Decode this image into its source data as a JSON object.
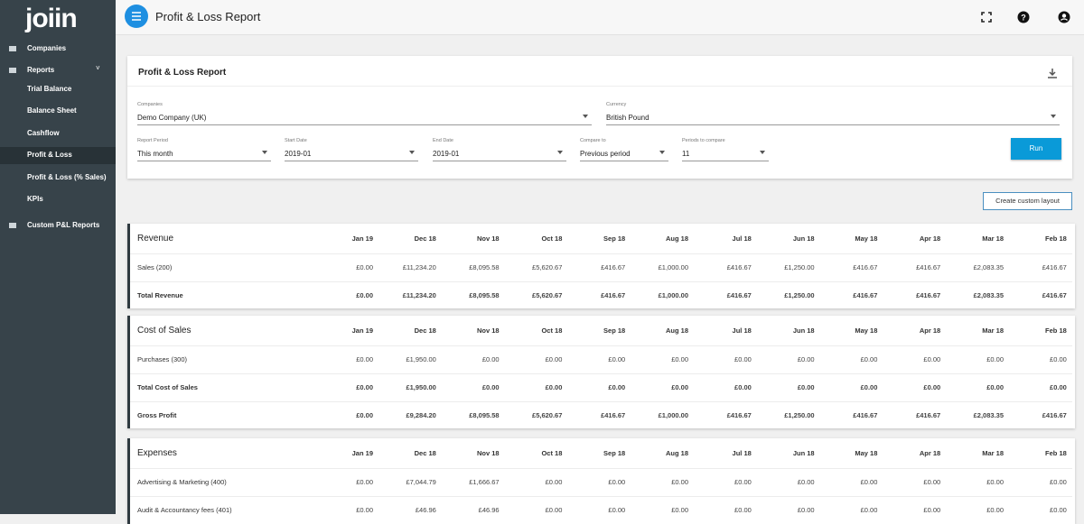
{
  "sidebar": {
    "logo": "joiin",
    "items": [
      "Companies",
      "Reports",
      "Trial Balance",
      "Balance Sheet",
      "Cashflow",
      "Profit & Loss",
      "Profit & Loss (% Sales)",
      "KPIs",
      "Custom P&L Reports"
    ]
  },
  "header": {
    "title": "Profit & Loss Report"
  },
  "filters_card": {
    "title": "Profit & Loss Report",
    "fields": [
      {
        "label": "Companies",
        "value": "Demo Company (UK)"
      },
      {
        "label": "Currency",
        "value": "British Pound"
      },
      {
        "label": "Report Period",
        "value": "This month"
      },
      {
        "label": "Start Date",
        "value": "2019-01"
      },
      {
        "label": "End Date",
        "value": "2019-01"
      },
      {
        "label": "Compare to",
        "value": "Previous period"
      },
      {
        "label": "Periods to compare",
        "value": "11"
      }
    ],
    "run": "Run"
  },
  "custom_layout": "Create custom layout",
  "periods": [
    "Jan 19",
    "Dec 18",
    "Nov 18",
    "Oct 18",
    "Sep 18",
    "Aug 18",
    "Jul 18",
    "Jun 18",
    "May 18",
    "Apr 18",
    "Mar 18",
    "Feb 18"
  ],
  "sections": [
    {
      "title": "Revenue",
      "rows": [
        {
          "label": "Sales (200)",
          "bold": false,
          "values": [
            "£0.00",
            "£11,234.20",
            "£8,095.58",
            "£5,620.67",
            "£416.67",
            "£1,000.00",
            "£416.67",
            "£1,250.00",
            "£416.67",
            "£416.67",
            "£2,083.35",
            "£416.67"
          ]
        },
        {
          "label": "Total Revenue",
          "bold": true,
          "values": [
            "£0.00",
            "£11,234.20",
            "£8,095.58",
            "£5,620.67",
            "£416.67",
            "£1,000.00",
            "£416.67",
            "£1,250.00",
            "£416.67",
            "£416.67",
            "£2,083.35",
            "£416.67"
          ]
        }
      ]
    },
    {
      "title": "Cost of Sales",
      "rows": [
        {
          "label": "Purchases (300)",
          "bold": false,
          "values": [
            "£0.00",
            "£1,950.00",
            "£0.00",
            "£0.00",
            "£0.00",
            "£0.00",
            "£0.00",
            "£0.00",
            "£0.00",
            "£0.00",
            "£0.00",
            "£0.00"
          ]
        },
        {
          "label": "Total Cost of Sales",
          "bold": true,
          "values": [
            "£0.00",
            "£1,950.00",
            "£0.00",
            "£0.00",
            "£0.00",
            "£0.00",
            "£0.00",
            "£0.00",
            "£0.00",
            "£0.00",
            "£0.00",
            "£0.00"
          ]
        },
        {
          "label": "Gross Profit",
          "bold": true,
          "values": [
            "£0.00",
            "£9,284.20",
            "£8,095.58",
            "£5,620.67",
            "£416.67",
            "£1,000.00",
            "£416.67",
            "£1,250.00",
            "£416.67",
            "£416.67",
            "£2,083.35",
            "£416.67"
          ]
        }
      ]
    },
    {
      "title": "Expenses",
      "rows": [
        {
          "label": "Advertising & Marketing (400)",
          "bold": false,
          "values": [
            "£0.00",
            "£7,044.79",
            "£1,666.67",
            "£0.00",
            "£0.00",
            "£0.00",
            "£0.00",
            "£0.00",
            "£0.00",
            "£0.00",
            "£0.00",
            "£0.00"
          ]
        },
        {
          "label": "Audit & Accountancy fees (401)",
          "bold": false,
          "values": [
            "£0.00",
            "£46.96",
            "£46.96",
            "£0.00",
            "£0.00",
            "£0.00",
            "£0.00",
            "£0.00",
            "£0.00",
            "£0.00",
            "£0.00",
            "£0.00"
          ]
        }
      ]
    }
  ]
}
